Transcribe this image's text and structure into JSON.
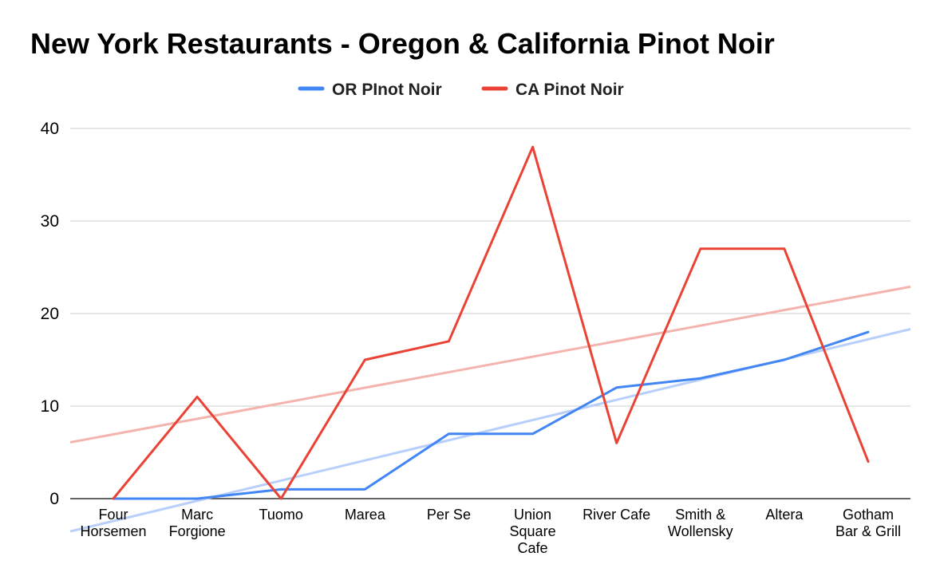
{
  "chart_data": {
    "type": "line",
    "title": "New York Restaurants - Oregon & California Pinot Noir",
    "xlabel": "",
    "ylabel": "",
    "categories": [
      [
        "Four",
        "Horsemen"
      ],
      [
        "Marc",
        "Forgione"
      ],
      [
        "Tuomo"
      ],
      [
        "Marea"
      ],
      [
        "Per Se"
      ],
      [
        "Union",
        "Square",
        "Cafe"
      ],
      [
        "River Cafe"
      ],
      [
        "Smith &",
        "Wollensky"
      ],
      [
        "Altera"
      ],
      [
        "Gotham",
        "Bar & Grill"
      ]
    ],
    "ylim": [
      0,
      40
    ],
    "yticks": [
      0,
      10,
      20,
      30,
      40
    ],
    "grid": true,
    "legend_position": "top",
    "series": [
      {
        "name": "OR PInot Noir",
        "color": "#4285f4",
        "values": [
          0,
          0,
          1,
          1,
          7,
          7,
          12,
          13,
          15,
          18
        ]
      },
      {
        "name": "CA Pinot Noir",
        "color": "#ea4335",
        "values": [
          0,
          11,
          0,
          15,
          17,
          38,
          6,
          27,
          27,
          4
        ]
      }
    ],
    "trendlines": [
      {
        "series": "OR PInot Noir",
        "type": "linear",
        "color": "#b7cffa"
      },
      {
        "series": "CA Pinot Noir",
        "type": "linear",
        "color": "#f5b3ae"
      }
    ]
  }
}
